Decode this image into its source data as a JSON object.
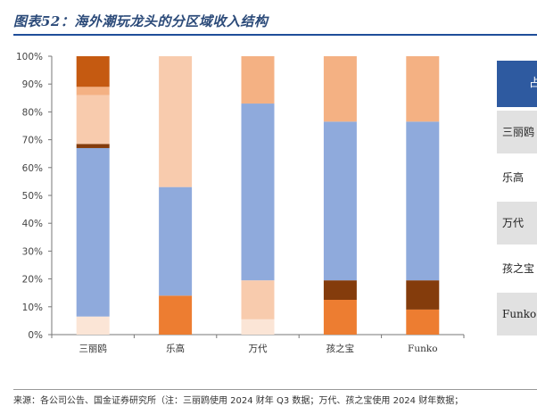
{
  "title": "图表52：海外潮玩龙头的分区域收入结构",
  "source": "来源：各公司公告、国金证券研究所（注：三丽鸥使用 2024 财年 Q3 数据；万代、孩之宝使用 2024 财年数据；",
  "table": {
    "header": "占",
    "rows": [
      {
        "label": "三丽鸥",
        "shaded": true
      },
      {
        "label": "乐高",
        "shaded": false
      },
      {
        "label": "万代",
        "shaded": true
      },
      {
        "label": "孩之宝",
        "shaded": false
      },
      {
        "label": "Funko",
        "shaded": true
      }
    ]
  },
  "chart_data": {
    "type": "bar",
    "stacked": true,
    "categories": [
      "三丽鸥",
      "乐高",
      "万代",
      "孩之宝",
      "Funko"
    ],
    "ylim": [
      0,
      100
    ],
    "yticks": [
      "0%",
      "10%",
      "20%",
      "30%",
      "40%",
      "50%",
      "60%",
      "70%",
      "80%",
      "90%",
      "100%"
    ],
    "series": [
      {
        "color": "#fbe5d6",
        "values": [
          6.5,
          0,
          5.5,
          0,
          0
        ]
      },
      {
        "color": "#ed7d31",
        "values": [
          0,
          14,
          0,
          12.5,
          9
        ]
      },
      {
        "color": "#843c0c",
        "values": [
          0,
          0,
          0,
          7,
          10.5
        ]
      },
      {
        "color": "#f8cbad",
        "values": [
          0,
          0,
          14,
          0,
          0
        ]
      },
      {
        "color": "#8faadc",
        "values": [
          60.5,
          39,
          63.5,
          57,
          57
        ]
      },
      {
        "color": "#843c0c",
        "values": [
          1.5,
          0,
          0,
          0,
          0
        ]
      },
      {
        "color": "#f8cbad",
        "values": [
          17.5,
          47,
          0,
          0,
          0
        ]
      },
      {
        "color": "#f4b183",
        "values": [
          3,
          0,
          17,
          23.5,
          23.5
        ]
      },
      {
        "color": "#c55a11",
        "values": [
          11,
          0,
          0,
          0,
          0
        ]
      }
    ]
  }
}
